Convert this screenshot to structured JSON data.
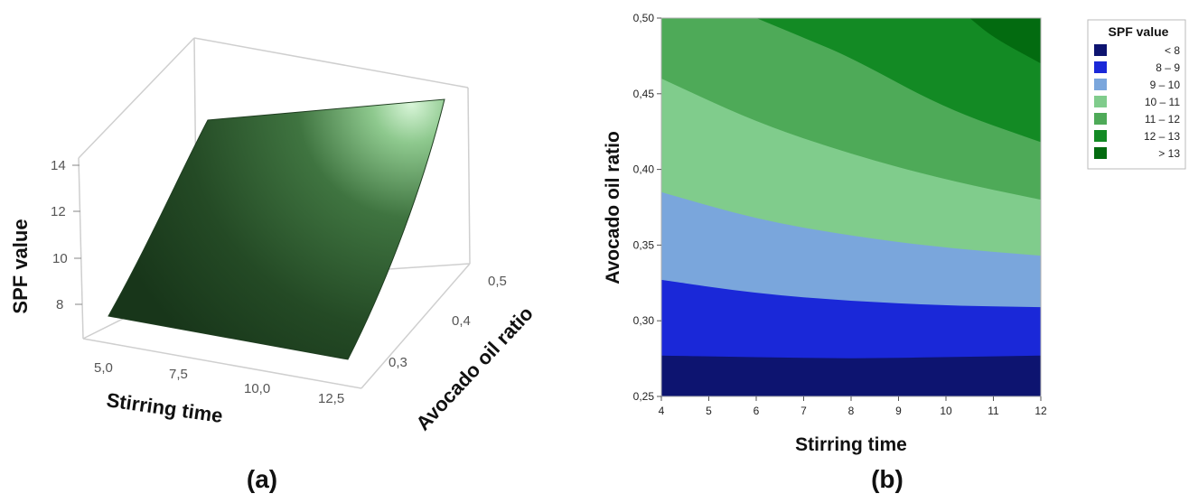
{
  "panels": {
    "a": {
      "label": "(a)"
    },
    "b": {
      "label": "(b)"
    }
  },
  "chart_data": [
    {
      "type": "surface",
      "panel": "(a)",
      "xlabel": "Stirring time",
      "ylabel": "Avocado oil ratio",
      "zlabel": "SPF value",
      "x_ticks": [
        "5,0",
        "7,5",
        "10,0",
        "12,5"
      ],
      "y_ticks": [
        "0,3",
        "0,4",
        "0,5"
      ],
      "z_ticks": [
        "8",
        "10",
        "12",
        "14"
      ],
      "xlim": [
        4,
        12
      ],
      "ylim": [
        0.25,
        0.5
      ],
      "zlim": [
        7,
        14.5
      ],
      "corner_values": [
        {
          "x": 4,
          "y": 0.25,
          "z": 7.6
        },
        {
          "x": 12,
          "y": 0.25,
          "z": 7.7
        },
        {
          "x": 4,
          "y": 0.5,
          "z": 12.5
        },
        {
          "x": 12,
          "y": 0.5,
          "z": 14.0
        }
      ],
      "color": "#2f5f2f"
    },
    {
      "type": "contour",
      "panel": "(b)",
      "xlabel": "Stirring time",
      "ylabel": "Avocado oil ratio",
      "x_ticks": [
        "4",
        "5",
        "6",
        "7",
        "8",
        "9",
        "10",
        "11",
        "12"
      ],
      "y_ticks": [
        "0,25",
        "0,30",
        "0,35",
        "0,40",
        "0,45",
        "0,50"
      ],
      "xlim": [
        4,
        12
      ],
      "ylim": [
        0.25,
        0.5
      ],
      "legend_title": "SPF value",
      "legend_placement": "top-right",
      "bands": [
        {
          "label": "<   8",
          "color": "#0d1470"
        },
        {
          "label": "8  –  9",
          "color": "#1a28d8"
        },
        {
          "label": "9  –  10",
          "color": "#7aa6dc"
        },
        {
          "label": "10  –  11",
          "color": "#80cc8c"
        },
        {
          "label": "11  –  12",
          "color": "#4eaa58"
        },
        {
          "label": "12  –  13",
          "color": "#138a24"
        },
        {
          "label": ">  13",
          "color": "#036b10"
        }
      ],
      "contour_levels": [
        {
          "level": 8,
          "points": [
            [
              4,
              0.277
            ],
            [
              6,
              0.276
            ],
            [
              8,
              0.275
            ],
            [
              10,
              0.276
            ],
            [
              12,
              0.277
            ]
          ]
        },
        {
          "level": 9,
          "points": [
            [
              4,
              0.327
            ],
            [
              6,
              0.318
            ],
            [
              8,
              0.313
            ],
            [
              10,
              0.31
            ],
            [
              12,
              0.309
            ]
          ]
        },
        {
          "level": 10,
          "points": [
            [
              4,
              0.385
            ],
            [
              6,
              0.367
            ],
            [
              8,
              0.356
            ],
            [
              10,
              0.348
            ],
            [
              12,
              0.343
            ]
          ]
        },
        {
          "level": 11,
          "points": [
            [
              4,
              0.46
            ],
            [
              6,
              0.431
            ],
            [
              8,
              0.41
            ],
            [
              10,
              0.393
            ],
            [
              12,
              0.38
            ]
          ]
        },
        {
          "level": 12,
          "points": [
            [
              6,
              0.5
            ],
            [
              7,
              0.487
            ],
            [
              8,
              0.474
            ],
            [
              10,
              0.44
            ],
            [
              12,
              0.418
            ]
          ]
        },
        {
          "level": 13,
          "points": [
            [
              10.5,
              0.5
            ],
            [
              11,
              0.487
            ],
            [
              12,
              0.47
            ]
          ]
        }
      ]
    }
  ]
}
